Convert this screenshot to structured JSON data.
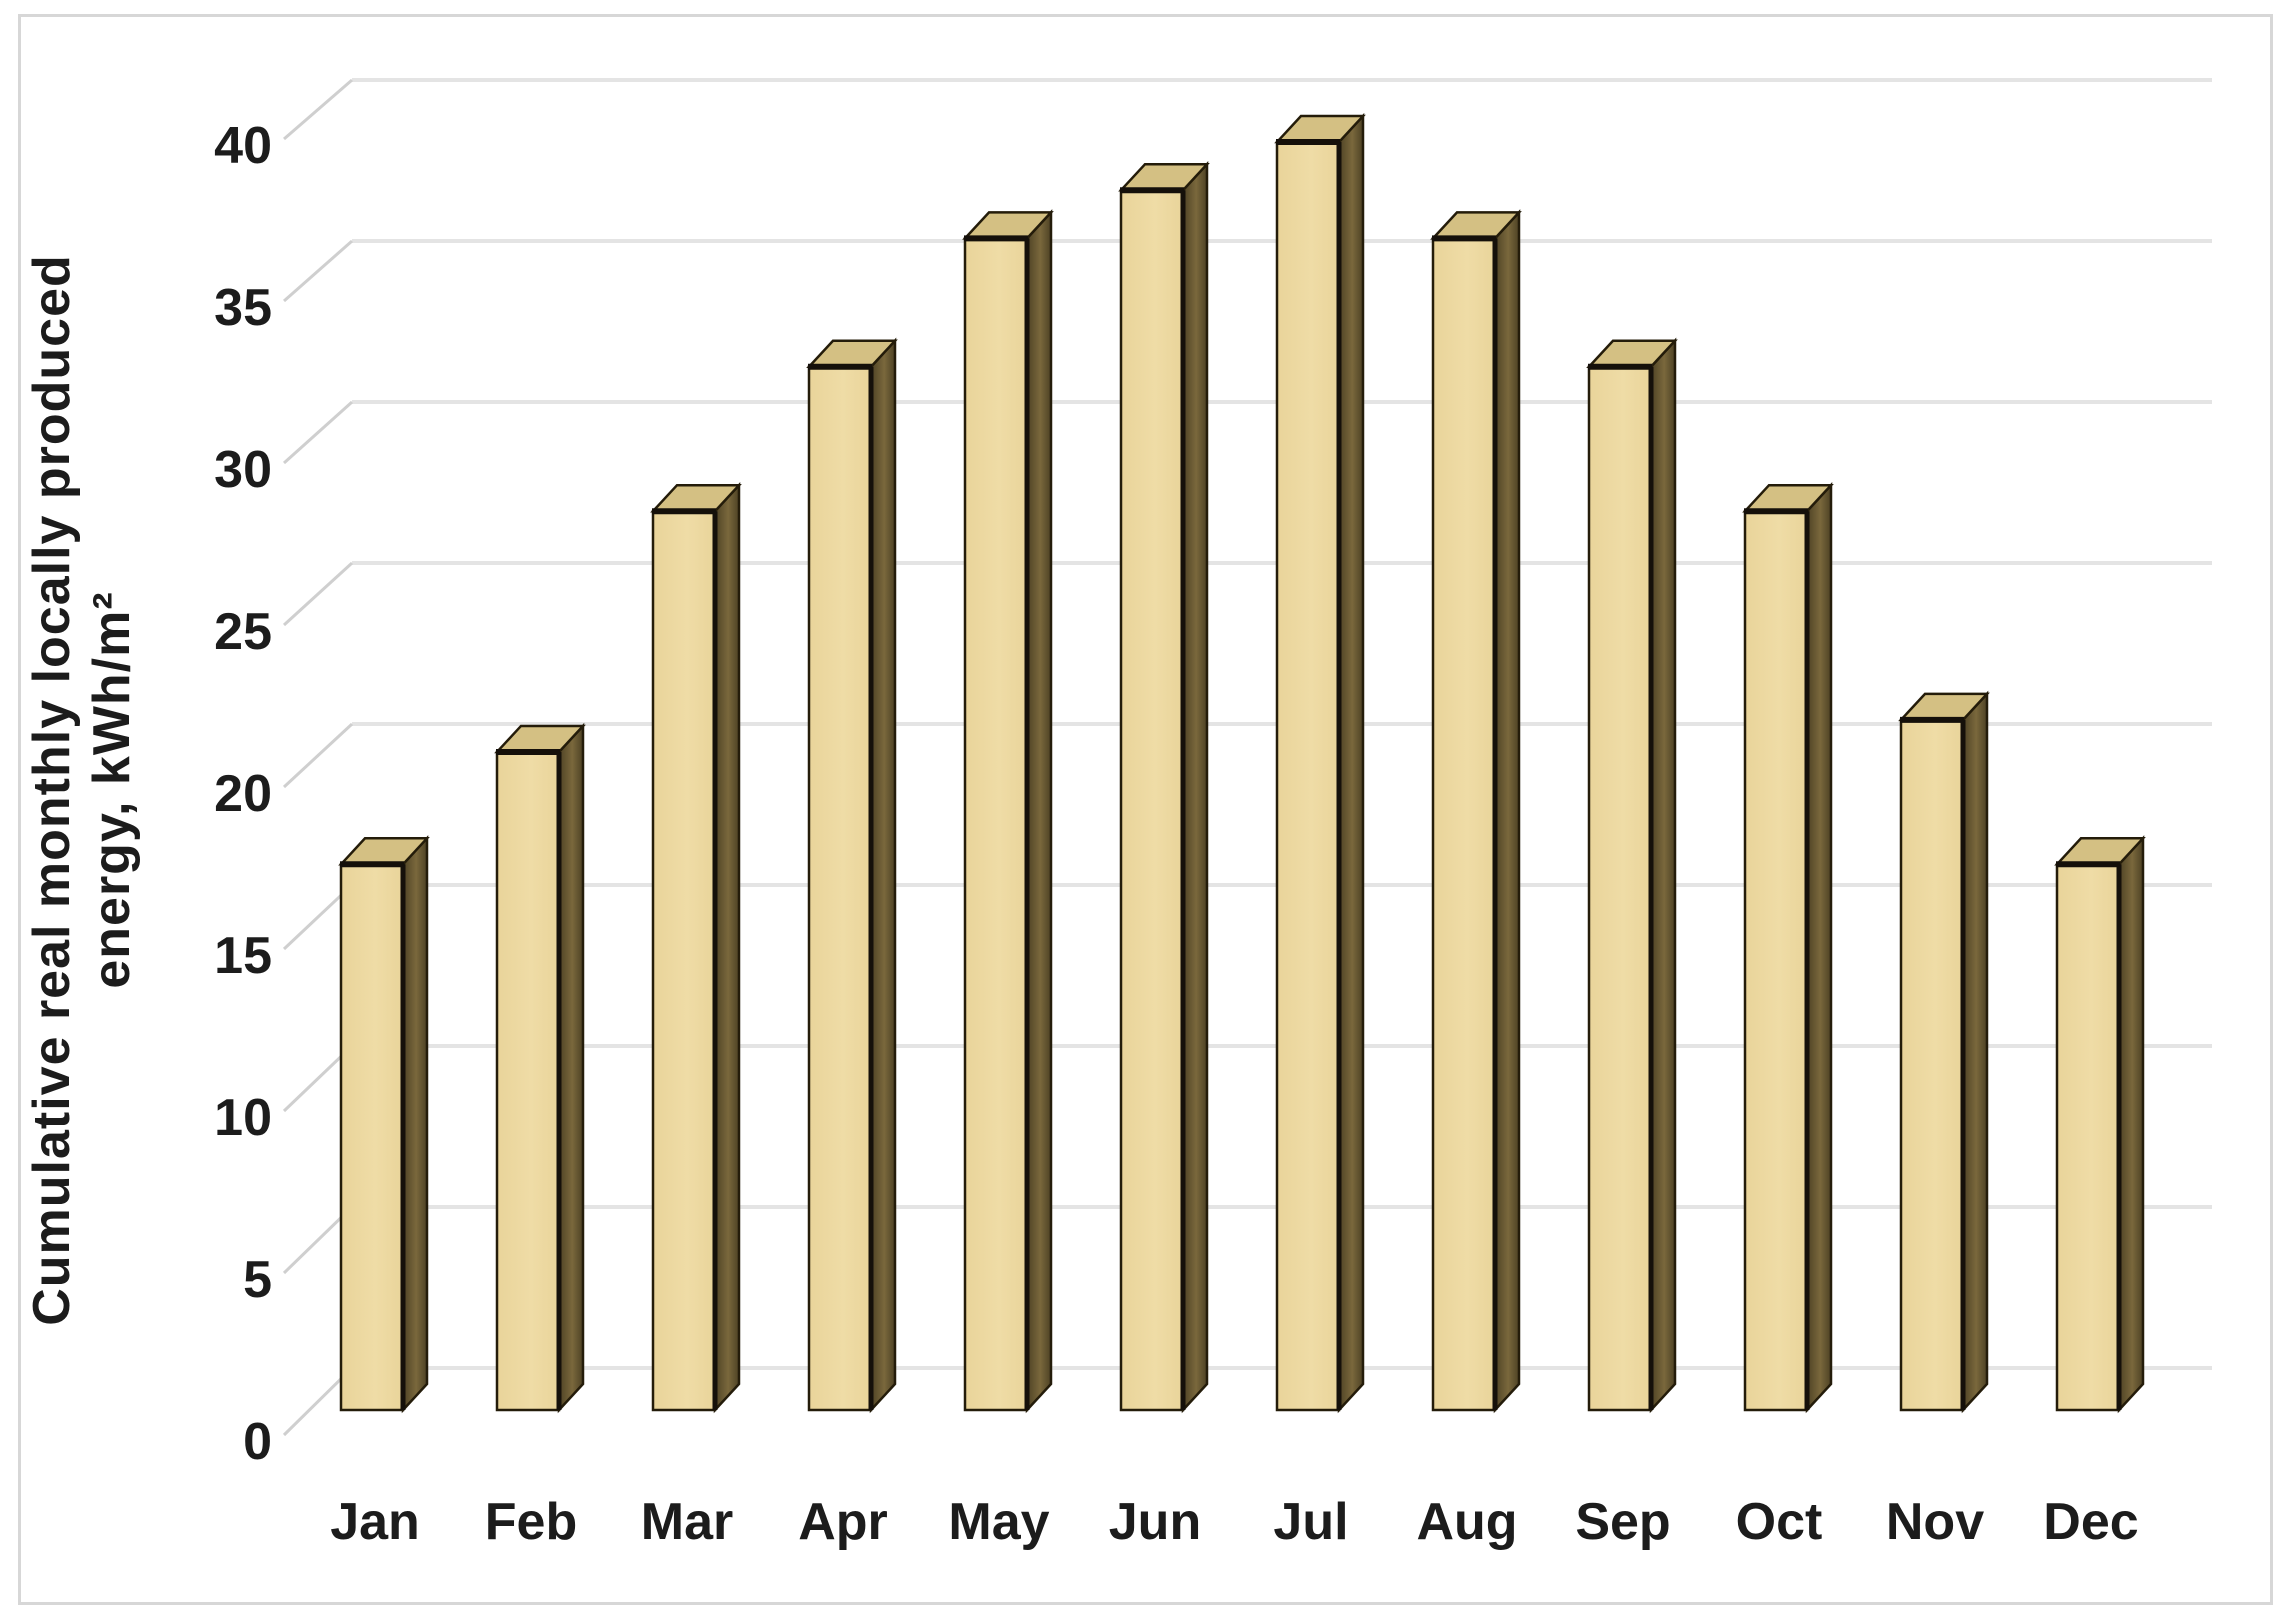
{
  "figure": {
    "y_axis_title_line1": "Cumulative real monthly locally produced",
    "y_axis_title_line2": "energy, kWh/m²"
  },
  "chart_data": {
    "type": "bar",
    "style": "3d-column",
    "title": "",
    "categories": [
      "Jan",
      "Feb",
      "Mar",
      "Apr",
      "May",
      "Jun",
      "Jul",
      "Aug",
      "Sep",
      "Oct",
      "Nov",
      "Dec"
    ],
    "values": [
      17,
      20.5,
      28,
      32.5,
      36.5,
      38,
      39.5,
      36.5,
      32.5,
      28,
      21.5,
      17
    ],
    "series": [
      {
        "name": "Cumulative real monthly locally produced energy",
        "values": [
          17,
          20.5,
          28,
          32.5,
          36.5,
          38,
          39.5,
          36.5,
          32.5,
          28,
          21.5,
          17
        ]
      }
    ],
    "xlabel": "",
    "ylabel": "Cumulative real monthly locally produced energy, kWh/m²",
    "yticks": [
      40,
      35,
      30,
      25,
      20,
      15,
      10,
      5,
      0
    ],
    "ylim": [
      0,
      40
    ],
    "grid": true,
    "legend_position": "none",
    "colors": {
      "bar_front": "#e9d49a",
      "bar_front_light": "#efdca6",
      "bar_top": "#d4c083",
      "bar_side": "#7a683c",
      "bar_side_dark": "#4e4225",
      "bar_outline": "#241c0a",
      "bar_edge": "#15100a",
      "gridline": "#e4e4e4",
      "tick_line": "#cfcfcf",
      "text": "#1c1c1c",
      "frame": "#d7d7d7",
      "background": "#ffffff"
    }
  }
}
